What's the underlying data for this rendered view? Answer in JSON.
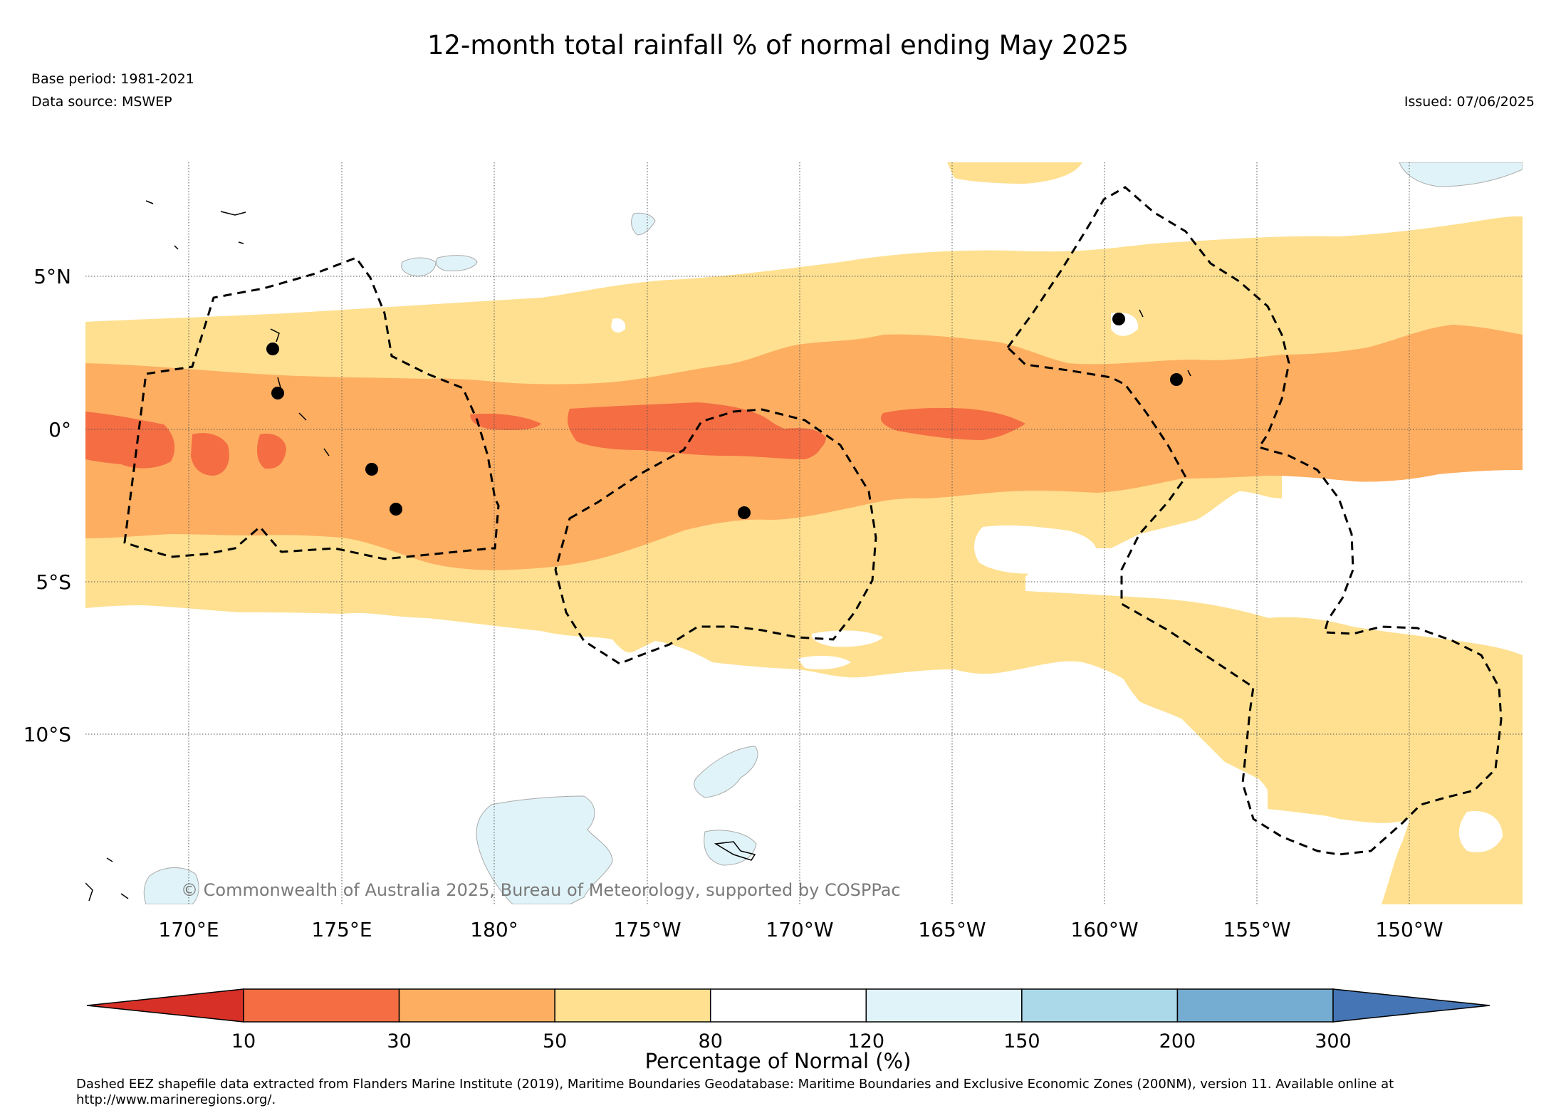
{
  "header": {
    "title": "12-month total rainfall % of normal ending May 2025",
    "base_period": "Base period: 1981-2021",
    "data_source": "Data source: MSWEP",
    "issued": "Issued: 07/06/2025"
  },
  "map": {
    "region": "Central Pacific, 167°E–147°W, 15.5°S–8.5°N",
    "lat_ticks": [
      "5°N",
      "0°",
      "5°S",
      "10°S"
    ],
    "lon_ticks": [
      "170°E",
      "175°E",
      "180°",
      "175°W",
      "170°W",
      "165°W",
      "160°W",
      "155°W",
      "150°W"
    ],
    "grid": true,
    "credit": "© Commonwealth of Australia 2025, Bureau of Meteorology, supported by COSPPac",
    "eez_style": "dashed black",
    "island_markers": "black dots"
  },
  "legend": {
    "title": "Percentage of Normal (%)",
    "boundaries": [
      "10",
      "30",
      "50",
      "80",
      "120",
      "150",
      "200",
      "300"
    ],
    "colors": [
      "#d73027",
      "#f46d43",
      "#fdae61",
      "#fee090",
      "#ffffff",
      "#e0f3f8",
      "#abd9e9",
      "#74add1",
      "#4575b4"
    ],
    "extend": "both"
  },
  "footnote": "Dashed EEZ shapefile data extracted from Flanders Marine Institute (2019), Maritime Boundaries Geodatabase: Maritime Boundaries and Exclusive Economic Zones (200NM), version 11. Available online at http://www.marineregions.org/."
}
